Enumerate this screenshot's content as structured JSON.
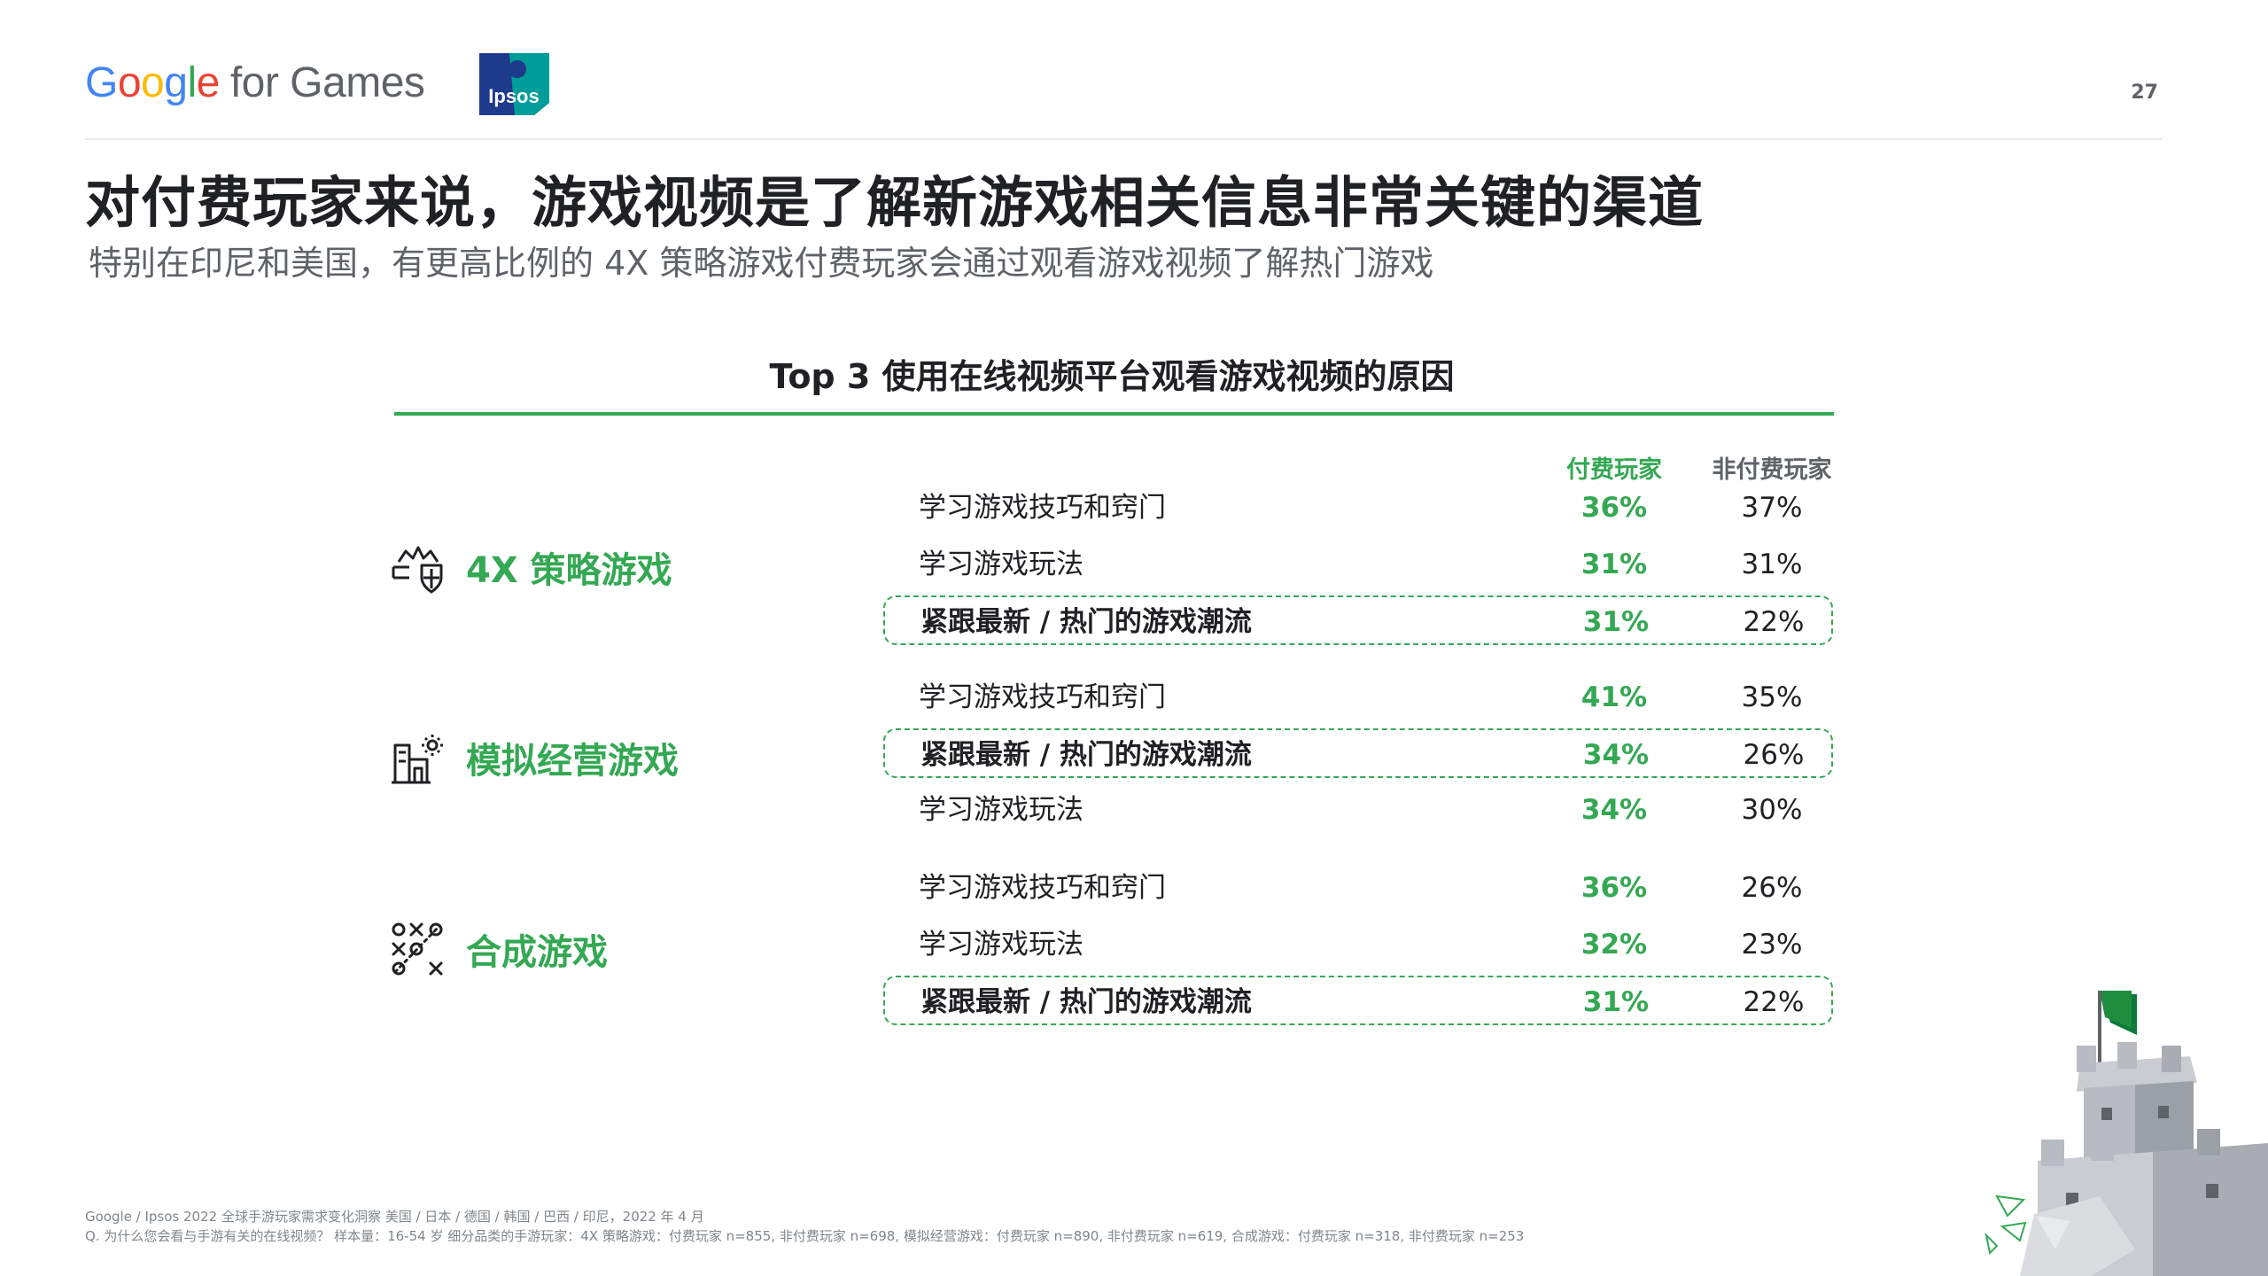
{
  "header": {
    "google_logo_letters": [
      {
        "char": "G",
        "color": "#4285F4"
      },
      {
        "char": "o",
        "color": "#EA4335"
      },
      {
        "char": "o",
        "color": "#FBBC05"
      },
      {
        "char": "g",
        "color": "#4285F4"
      },
      {
        "char": "l",
        "color": "#34A853"
      },
      {
        "char": "e",
        "color": "#EA4335"
      }
    ],
    "google_logo_suffix": "for Games",
    "ipsos_logo_text": "Ipsos",
    "page_number": "27"
  },
  "title": "对付费玩家来说，游戏视频是了解新游戏相关信息非常关键的渠道",
  "subtitle": "特别在印尼和美国，有更高比例的 4X 策略游戏付费玩家会通过观看游戏视频了解热门游戏",
  "chart": {
    "title": "Top 3 使用在线视频平台观看游戏视频的原因",
    "col_paid": "付费玩家",
    "col_nonpaid": "非付费玩家"
  },
  "chart_data": {
    "type": "table",
    "title": "Top 3 使用在线视频平台观看游戏视频的原因",
    "columns": [
      "付费玩家",
      "非付费玩家"
    ],
    "groups": [
      {
        "category": "4X 策略游戏",
        "icon": "crown-shield-icon",
        "rows": [
          {
            "reason": "学习游戏技巧和窍门",
            "paid": "36%",
            "nonpaid": "37%",
            "highlight": false
          },
          {
            "reason": "学习游戏玩法",
            "paid": "31%",
            "nonpaid": "31%",
            "highlight": false
          },
          {
            "reason": "紧跟最新 / 热门的游戏潮流",
            "paid": "31%",
            "nonpaid": "22%",
            "highlight": true
          }
        ]
      },
      {
        "category": "模拟经营游戏",
        "icon": "building-sun-icon",
        "rows": [
          {
            "reason": "学习游戏技巧和窍门",
            "paid": "41%",
            "nonpaid": "35%",
            "highlight": false
          },
          {
            "reason": "紧跟最新 / 热门的游戏潮流",
            "paid": "34%",
            "nonpaid": "26%",
            "highlight": true
          },
          {
            "reason": "学习游戏玩法",
            "paid": "34%",
            "nonpaid": "30%",
            "highlight": false
          }
        ]
      },
      {
        "category": "合成游戏",
        "icon": "tic-tac-toe-icon",
        "rows": [
          {
            "reason": "学习游戏技巧和窍门",
            "paid": "36%",
            "nonpaid": "26%",
            "highlight": false
          },
          {
            "reason": "学习游戏玩法",
            "paid": "32%",
            "nonpaid": "23%",
            "highlight": false
          },
          {
            "reason": "紧跟最新 / 热门的游戏潮流",
            "paid": "31%",
            "nonpaid": "22%",
            "highlight": true
          }
        ]
      }
    ]
  },
  "footnotes": {
    "source": "Google / Ipsos 2022 全球手游玩家需求变化洞察 美国 / 日本 / 德国 / 韩国 / 巴西 / 印尼，2022 年 4 月",
    "question": "Q. 为什么您会看与手游有关的在线视频？ 样本量：16-54 岁 细分品类的手游玩家：4X 策略游戏：付费玩家 n=855, 非付费玩家 n=698, 模拟经营游戏：付费玩家 n=890, 非付费玩家 n=619, 合成游戏：付费玩家 n=318, 非付费玩家 n=253"
  },
  "colors": {
    "accent_green": "#34a853",
    "ipsos_teal": "#009d9a",
    "ipsos_blue": "#1e3a8a",
    "text_dark": "#202124",
    "text_gray": "#5f6368"
  }
}
